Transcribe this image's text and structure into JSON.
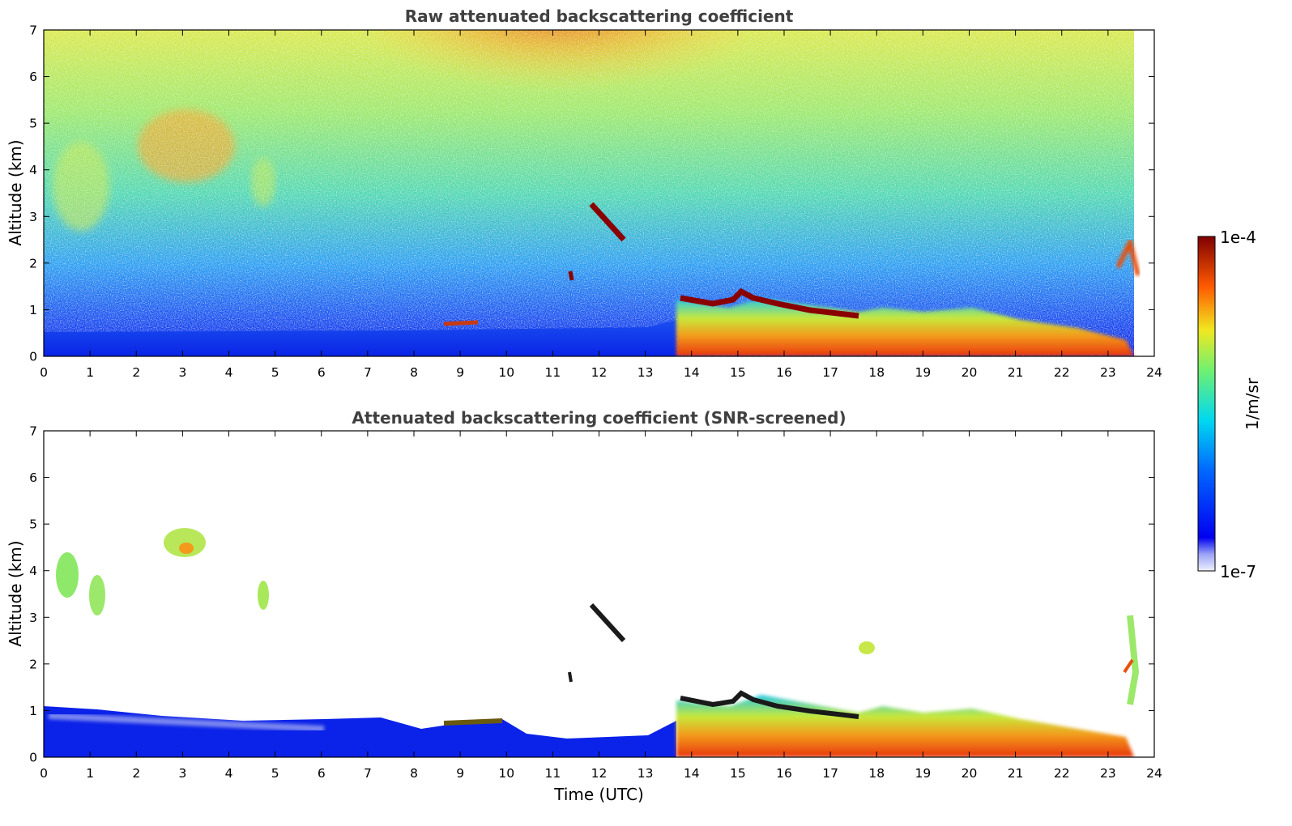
{
  "chart_data": [
    {
      "type": "heatmap",
      "title": "Raw attenuated backscattering coefficient",
      "xlabel": "",
      "ylabel": "Altitude (km)",
      "xlim": [
        0,
        24
      ],
      "ylim": [
        0,
        7
      ],
      "xticks": [
        "0",
        "1",
        "2",
        "3",
        "4",
        "5",
        "6",
        "7",
        "8",
        "9",
        "10",
        "11",
        "12",
        "13",
        "14",
        "15",
        "16",
        "17",
        "18",
        "19",
        "20",
        "21",
        "22",
        "23",
        "24"
      ],
      "yticks": [
        "0",
        "1",
        "2",
        "3",
        "4",
        "5",
        "6",
        "7"
      ],
      "features": [
        {
          "kind": "boundary-layer",
          "x": [
            0,
            13.6
          ],
          "y": [
            0,
            0.5
          ],
          "level": "low"
        },
        {
          "kind": "boundary-layer",
          "x": [
            13.6,
            23.6
          ],
          "y": [
            0,
            1.3
          ],
          "level": "high"
        },
        {
          "kind": "cloud-layer",
          "x": [
            13.7,
            17.6
          ],
          "y": [
            0.8,
            1.4
          ],
          "level": "very-high"
        },
        {
          "kind": "cloud",
          "x": [
            11.9,
            12.6
          ],
          "y": [
            2.5,
            3.3
          ],
          "level": "very-high"
        },
        {
          "kind": "aerosol",
          "x": [
            2.6,
            3.6
          ],
          "y": [
            4.1,
            5.1
          ],
          "level": "mid"
        },
        {
          "kind": "aerosol",
          "x": [
            0.2,
            1.3
          ],
          "y": [
            3.0,
            4.6
          ],
          "level": "mid"
        },
        {
          "kind": "aerosol",
          "x": [
            4.5,
            5.0
          ],
          "y": [
            3.2,
            4.0
          ],
          "level": "mid"
        }
      ]
    },
    {
      "type": "heatmap",
      "title": "Attenuated backscattering coefficient (SNR-screened)",
      "xlabel": "Time (UTC)",
      "ylabel": "Altitude (km)",
      "xlim": [
        0,
        24
      ],
      "ylim": [
        0,
        7
      ],
      "xticks": [
        "0",
        "1",
        "2",
        "3",
        "4",
        "5",
        "6",
        "7",
        "8",
        "9",
        "10",
        "11",
        "12",
        "13",
        "14",
        "15",
        "16",
        "17",
        "18",
        "19",
        "20",
        "21",
        "22",
        "23",
        "24"
      ],
      "yticks": [
        "0",
        "1",
        "2",
        "3",
        "4",
        "5",
        "6",
        "7"
      ],
      "features": [
        {
          "kind": "boundary-layer",
          "x": [
            0,
            13.6
          ],
          "y": [
            0,
            0.9
          ],
          "level": "low"
        },
        {
          "kind": "boundary-layer",
          "x": [
            13.6,
            23.6
          ],
          "y": [
            0,
            1.3
          ],
          "level": "high"
        },
        {
          "kind": "cloud-layer",
          "x": [
            13.7,
            17.6
          ],
          "y": [
            0.8,
            1.4
          ],
          "level": "saturated"
        },
        {
          "kind": "cloud",
          "x": [
            11.9,
            12.6
          ],
          "y": [
            2.5,
            3.3
          ],
          "level": "saturated"
        },
        {
          "kind": "aerosol",
          "x": [
            2.6,
            3.6
          ],
          "y": [
            4.1,
            5.1
          ],
          "level": "mid"
        }
      ]
    }
  ],
  "colorbar": {
    "top_label": "1e-4",
    "bottom_label": "1e-7",
    "unit_label": "1/m/sr",
    "colormap": "jet"
  }
}
